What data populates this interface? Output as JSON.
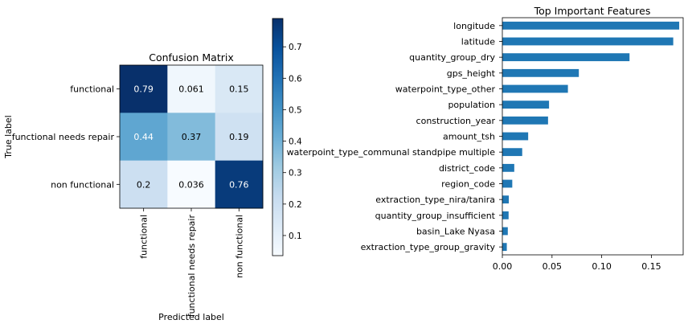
{
  "chart_data": [
    {
      "type": "heatmap",
      "title": "Confusion Matrix",
      "xlabel": "Predicted label",
      "ylabel": "True label",
      "x_categories": [
        "functional",
        "functional needs repair",
        "non functional"
      ],
      "y_categories": [
        "functional",
        "functional needs repair",
        "non functional"
      ],
      "values": [
        [
          0.79,
          0.061,
          0.15
        ],
        [
          0.44,
          0.37,
          0.19
        ],
        [
          0.2,
          0.036,
          0.76
        ]
      ],
      "cell_labels": [
        [
          "0.79",
          "0.061",
          "0.15"
        ],
        [
          "0.44",
          "0.37",
          "0.19"
        ],
        [
          "0.2",
          "0.036",
          "0.76"
        ]
      ],
      "colormap": "Blues",
      "color_range": [
        0.036,
        0.79
      ],
      "colorbar_ticks": [
        "0.1",
        "0.2",
        "0.3",
        "0.4",
        "0.5",
        "0.6",
        "0.7"
      ]
    },
    {
      "type": "bar",
      "orientation": "horizontal",
      "title": "Top Important Features",
      "xlabel": "",
      "ylabel": "",
      "color": "#1f77b4",
      "xlim": [
        0,
        0.182
      ],
      "x_ticks": [
        "0.00",
        "0.05",
        "0.10",
        "0.15"
      ],
      "categories": [
        "longitude",
        "latitude",
        "quantity_group_dry",
        "gps_height",
        "waterpoint_type_other",
        "population",
        "construction_year",
        "amount_tsh",
        "waterpoint_type_communal standpipe multiple",
        "district_code",
        "region_code",
        "extraction_type_nira/tanira",
        "quantity_group_insufficient",
        "basin_Lake Nyasa",
        "extraction_type_group_gravity"
      ],
      "values": [
        0.178,
        0.172,
        0.128,
        0.077,
        0.066,
        0.047,
        0.046,
        0.026,
        0.02,
        0.012,
        0.01,
        0.0065,
        0.0063,
        0.0055,
        0.0045
      ]
    }
  ]
}
